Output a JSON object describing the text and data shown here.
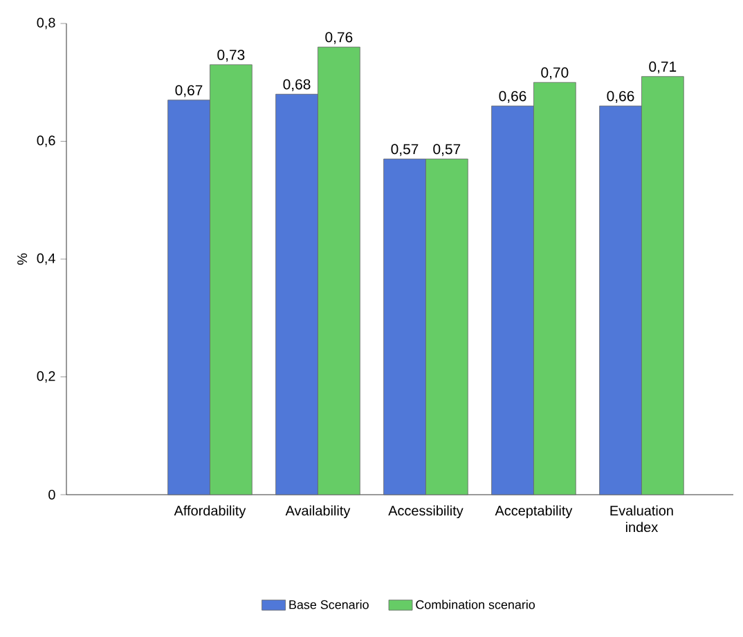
{
  "chart_data": {
    "type": "bar",
    "ylabel": "%",
    "categories": [
      "Affordability",
      "Availability",
      "Accessibility",
      "Acceptability",
      "Evaluation index"
    ],
    "series": [
      {
        "name": "Base Scenario",
        "color": "#5078d8",
        "values": [
          0.67,
          0.68,
          0.57,
          0.66,
          0.66
        ],
        "value_labels": [
          "0,67",
          "0,68",
          "0,57",
          "0,66",
          "0,66"
        ]
      },
      {
        "name": "Combination scenario",
        "color": "#66cc66",
        "values": [
          0.73,
          0.76,
          0.57,
          0.7,
          0.71
        ],
        "value_labels": [
          "0,73",
          "0,76",
          "0,57",
          "0,70",
          "0,71"
        ]
      }
    ],
    "ylim": [
      0,
      0.8
    ],
    "yticks": [
      {
        "value": 0,
        "label": "0"
      },
      {
        "value": 0.2,
        "label": "0,2"
      },
      {
        "value": 0.4,
        "label": "0,4"
      },
      {
        "value": 0.6,
        "label": "0,6"
      },
      {
        "value": 0.8,
        "label": "0,8"
      }
    ],
    "grid": false,
    "legend": "bottom"
  }
}
